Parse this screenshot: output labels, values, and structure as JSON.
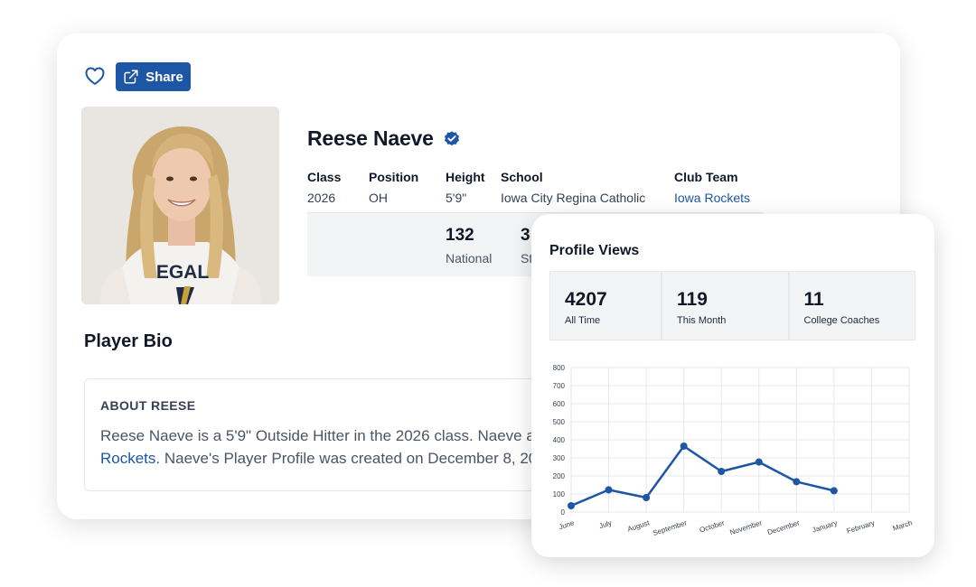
{
  "actions": {
    "share_label": "Share"
  },
  "player": {
    "name": "Reese Naeve",
    "photo_jersey_text": "EGAL"
  },
  "info": {
    "class_label": "Class",
    "class_value": "2026",
    "position_label": "Position",
    "position_value": "OH",
    "height_label": "Height",
    "height_value": "5'9\"",
    "school_label": "School",
    "school_value": "Iowa City Regina Catholic",
    "club_label": "Club Team",
    "club_value": "Iowa Rockets"
  },
  "rankings": {
    "national_value": "132",
    "national_label": "National",
    "state_value": "3",
    "state_label": "St"
  },
  "bio": {
    "title": "Player Bio",
    "heading": "ABOUT REESE",
    "line1": "Reese Naeve is a 5'9\" Outside Hitter in the 2026 class. Naeve a",
    "line2_link": "Rockets",
    "line2_rest": ". Naeve's Player Profile was created on December 8, 20"
  },
  "views": {
    "title": "Profile Views",
    "stats": [
      {
        "value": "4207",
        "label": "All Time"
      },
      {
        "value": "119",
        "label": "This Month"
      },
      {
        "value": "11",
        "label": "College Coaches"
      }
    ]
  },
  "chart_data": {
    "type": "line",
    "title": "",
    "xlabel": "",
    "ylabel": "",
    "categories": [
      "June",
      "July",
      "August",
      "September",
      "October",
      "November",
      "December",
      "January",
      "February",
      "March"
    ],
    "series": [
      {
        "values": [
          35,
          123,
          80,
          365,
          225,
          277,
          168,
          118,
          null,
          null
        ]
      }
    ],
    "ylim": [
      0,
      800
    ],
    "yticks": [
      0,
      100,
      200,
      300,
      400,
      500,
      600,
      700,
      800
    ],
    "grid": true,
    "legend": "none",
    "line_color": "#1d56a5"
  },
  "colors": {
    "brand_blue": "#1d56a5",
    "panel_gray": "#f3f4f6"
  }
}
